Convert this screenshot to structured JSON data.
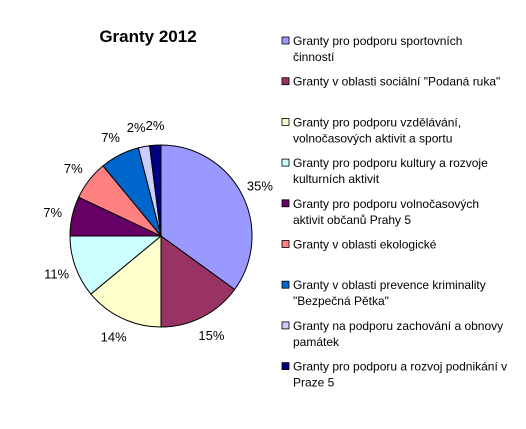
{
  "chart_data": {
    "type": "pie",
    "title": "Granty 2012",
    "legend_position": "right",
    "slices": [
      {
        "label": [
          "Granty pro podporu sportovních",
          "činností"
        ],
        "value": 35,
        "display": "35%",
        "color": "#9999ff"
      },
      {
        "label": [
          "Granty v oblasti sociální \"Podaná ruka\""
        ],
        "value": 15,
        "display": "15%",
        "color": "#993366"
      },
      {
        "label": [
          "Granty pro podporu vzdělávání,",
          "volnočasových aktivit a sportu"
        ],
        "value": 14,
        "display": "14%",
        "color": "#ffffcc"
      },
      {
        "label": [
          "Granty pro podporu kultury a rozvoje",
          "kulturních aktivit"
        ],
        "value": 11,
        "display": "11%",
        "color": "#ccffff"
      },
      {
        "label": [
          "Granty pro podporu volnočasových",
          "aktivit občanů Prahy 5"
        ],
        "value": 7,
        "display": "7%",
        "color": "#660066"
      },
      {
        "label": [
          "Granty v oblasti ekologické"
        ],
        "value": 7,
        "display": "7%",
        "color": "#ff8080"
      },
      {
        "label": [
          "Granty v oblasti prevence kriminality",
          "\"Bezpečná Pětka\""
        ],
        "value": 7,
        "display": "7%",
        "color": "#0066cc"
      },
      {
        "label": [
          "Granty na podporu zachování a obnovy",
          "památek"
        ],
        "value": 2,
        "display": "2%",
        "color": "#ccccff"
      },
      {
        "label": [
          "Granty pro podporu a rozvoj podnikání v",
          "Praze 5"
        ],
        "value": 2,
        "display": "2%",
        "color": "#000080"
      }
    ]
  }
}
